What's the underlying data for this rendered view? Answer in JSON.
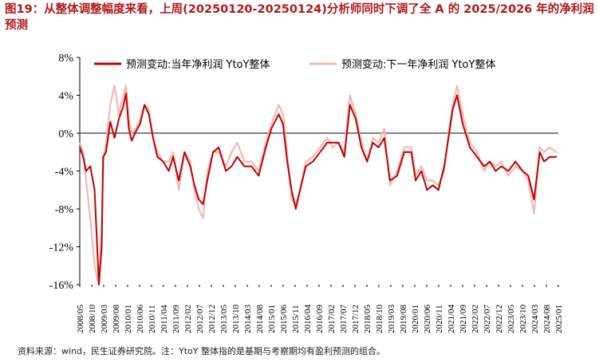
{
  "title": "图19：从整体调整幅度来看，上周(20250120-20250124)分析师同时下调了全 A 的 2025/2026 年的净利润预测",
  "source": "资料来源：wind，民生证券研究院。注：YtoY 整体指的是基期与考察期均有盈利预测的组合。",
  "colors": {
    "series1": "#c00000",
    "series2": "#f2b8b8",
    "title": "#b0191e"
  },
  "chart_data": {
    "type": "line",
    "ylim": [
      -16,
      8
    ],
    "yticks": [
      8,
      4,
      0,
      -4,
      -8,
      -12,
      -16
    ],
    "ytick_labels": [
      "8%",
      "4%",
      "0%",
      "-4%",
      "-8%",
      "-12%",
      "-16%"
    ],
    "xtick_labels": [
      "2008/05",
      "2008/10",
      "2009/03",
      "2009/08",
      "2010/01",
      "2010/06",
      "2010/11",
      "2011/04",
      "2011/09",
      "2012/02",
      "2012/07",
      "2012/12",
      "2013/05",
      "2013/10",
      "2014/03",
      "2014/08",
      "2015/01",
      "2015/06",
      "2015/11",
      "2016/04",
      "2016/09",
      "2017/02",
      "2017/07",
      "2017/12",
      "2018/05",
      "2018/10",
      "2019/03",
      "2019/08",
      "2020/01",
      "2020/06",
      "2020/11",
      "2021/04",
      "2021/09",
      "2022/02",
      "2022/07",
      "2022/12",
      "2023/05",
      "2023/10",
      "2024/03",
      "2024/08",
      "2025/01"
    ],
    "xlabel": "",
    "ylabel": "",
    "legend_position": "top",
    "series": [
      {
        "name": "预测变动:当年净利润 YtoY整体",
        "color": "#c00000",
        "x": [
          2008.33,
          2008.45,
          2008.55,
          2008.7,
          2008.85,
          2009.0,
          2009.1,
          2009.15,
          2009.25,
          2009.4,
          2009.55,
          2009.7,
          2009.85,
          2009.95,
          2010.05,
          2010.15,
          2010.3,
          2010.45,
          2010.6,
          2010.75,
          2010.9,
          2011.05,
          2011.25,
          2011.45,
          2011.6,
          2011.8,
          2012.0,
          2012.2,
          2012.35,
          2012.5,
          2012.65,
          2012.8,
          2013.0,
          2013.2,
          2013.45,
          2013.65,
          2013.85,
          2014.1,
          2014.35,
          2014.6,
          2014.85,
          2015.05,
          2015.3,
          2015.45,
          2015.6,
          2015.75,
          2015.9,
          2016.05,
          2016.25,
          2016.5,
          2016.75,
          2017.0,
          2017.2,
          2017.4,
          2017.6,
          2017.8,
          2018.0,
          2018.2,
          2018.4,
          2018.6,
          2018.8,
          2019.0,
          2019.2,
          2019.45,
          2019.7,
          2019.95,
          2020.1,
          2020.3,
          2020.5,
          2020.7,
          2020.9,
          2021.1,
          2021.25,
          2021.4,
          2021.55,
          2021.75,
          2022.0,
          2022.25,
          2022.5,
          2022.7,
          2022.9,
          2023.1,
          2023.35,
          2023.6,
          2023.85,
          2024.05,
          2024.25,
          2024.45,
          2024.6,
          2024.8,
          2025.05
        ],
        "y": [
          -1.5,
          -2.5,
          -4.0,
          -3.5,
          -6.0,
          -16.0,
          -12.0,
          -2.5,
          -2.0,
          1.2,
          -0.5,
          1.5,
          2.8,
          4.2,
          0.5,
          -0.8,
          0.2,
          1.0,
          3.0,
          2.0,
          -0.5,
          -2.5,
          -3.0,
          -4.0,
          -2.5,
          -5.0,
          -2.0,
          -3.5,
          -5.5,
          -7.0,
          -7.5,
          -5.0,
          -2.0,
          -1.5,
          -4.0,
          -3.5,
          -2.5,
          -3.5,
          -3.5,
          -4.5,
          -1.5,
          0.5,
          2.0,
          1.0,
          -3.0,
          -6.0,
          -8.0,
          -6.0,
          -3.5,
          -3.0,
          -2.0,
          -1.0,
          -1.0,
          -1.0,
          -2.5,
          3.0,
          1.5,
          -1.5,
          -3.0,
          -1.0,
          -1.5,
          -0.5,
          -5.0,
          -4.5,
          -2.0,
          -2.0,
          -5.0,
          -4.0,
          -6.0,
          -5.5,
          -6.0,
          -3.5,
          -0.5,
          2.5,
          4.0,
          1.0,
          -1.5,
          -2.5,
          -3.5,
          -3.0,
          -4.0,
          -3.5,
          -4.0,
          -3.0,
          -4.0,
          -4.5,
          -7.0,
          -2.0,
          -3.0,
          -2.5,
          -2.5
        ]
      },
      {
        "name": "预测变动:下一年净利润 YtoY整体",
        "color": "#f2b8b8",
        "x": [
          2008.33,
          2008.45,
          2008.55,
          2008.7,
          2008.85,
          2009.0,
          2009.1,
          2009.15,
          2009.25,
          2009.4,
          2009.55,
          2009.7,
          2009.85,
          2009.95,
          2010.05,
          2010.15,
          2010.3,
          2010.45,
          2010.6,
          2010.75,
          2010.9,
          2011.05,
          2011.25,
          2011.45,
          2011.6,
          2011.8,
          2012.0,
          2012.2,
          2012.35,
          2012.5,
          2012.65,
          2012.8,
          2013.0,
          2013.2,
          2013.45,
          2013.65,
          2013.85,
          2014.1,
          2014.35,
          2014.6,
          2014.85,
          2015.05,
          2015.3,
          2015.45,
          2015.6,
          2015.75,
          2015.9,
          2016.05,
          2016.25,
          2016.5,
          2016.75,
          2017.0,
          2017.2,
          2017.4,
          2017.6,
          2017.8,
          2018.0,
          2018.2,
          2018.4,
          2018.6,
          2018.8,
          2019.0,
          2019.2,
          2019.45,
          2019.7,
          2019.95,
          2020.1,
          2020.3,
          2020.5,
          2020.7,
          2020.9,
          2021.1,
          2021.25,
          2021.4,
          2021.55,
          2021.75,
          2022.0,
          2022.25,
          2022.5,
          2022.7,
          2022.9,
          2023.1,
          2023.35,
          2023.6,
          2023.85,
          2024.05,
          2024.25,
          2024.45,
          2024.6,
          2024.8,
          2025.05
        ],
        "y": [
          -1.0,
          -2.0,
          -5.0,
          -9.0,
          -14.0,
          -16.0,
          -10.0,
          -3.0,
          -1.0,
          3.0,
          5.0,
          2.0,
          4.0,
          5.0,
          1.5,
          0.0,
          0.5,
          1.5,
          3.0,
          2.5,
          -0.5,
          -2.0,
          -3.0,
          -3.0,
          -2.0,
          -6.0,
          -2.0,
          -3.0,
          -6.0,
          -8.0,
          -9.0,
          -4.0,
          -2.0,
          -2.0,
          -3.5,
          -2.0,
          -1.0,
          -3.0,
          -3.0,
          -4.0,
          -1.0,
          1.0,
          3.0,
          2.0,
          -2.0,
          -7.0,
          -7.5,
          -6.0,
          -3.0,
          -2.5,
          -1.5,
          -0.5,
          -1.5,
          -1.0,
          -2.0,
          4.0,
          2.0,
          -1.0,
          -3.0,
          -0.5,
          -1.0,
          0.5,
          -5.5,
          -4.0,
          -1.5,
          -1.5,
          -4.5,
          -3.5,
          -5.0,
          -5.0,
          -5.5,
          -4.0,
          0.0,
          3.0,
          5.0,
          2.0,
          -1.0,
          -2.0,
          -4.0,
          -3.0,
          -3.5,
          -3.0,
          -4.5,
          -3.5,
          -4.0,
          -5.0,
          -8.5,
          -1.5,
          -2.0,
          -1.5,
          -2.0
        ]
      }
    ]
  }
}
